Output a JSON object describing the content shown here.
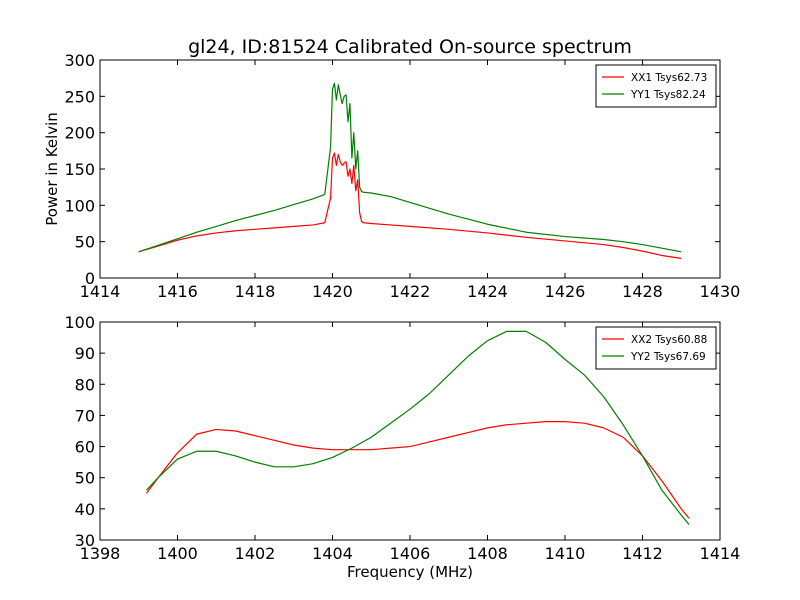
{
  "figure": {
    "title": "gl24, ID:81524 Calibrated On-source spectrum",
    "background": "#ffffff"
  },
  "chart_data": [
    {
      "type": "line",
      "title": "gl24, ID:81524 Calibrated On-source spectrum",
      "xlabel": "",
      "ylabel": "Power in Kelvin",
      "xlim": [
        1414,
        1430
      ],
      "ylim": [
        0,
        300
      ],
      "xticks": [
        1414,
        1416,
        1418,
        1420,
        1422,
        1424,
        1426,
        1428,
        1430
      ],
      "yticks": [
        0,
        50,
        100,
        150,
        200,
        250,
        300
      ],
      "grid": false,
      "legend_position": "top-right",
      "series": [
        {
          "name": "XX1 Tsys62.73",
          "color": "#ff0000",
          "x": [
            1415.0,
            1415.5,
            1416.0,
            1416.5,
            1417.0,
            1417.5,
            1418.0,
            1418.5,
            1419.0,
            1419.5,
            1419.8,
            1419.95,
            1420.0,
            1420.05,
            1420.1,
            1420.15,
            1420.2,
            1420.25,
            1420.3,
            1420.35,
            1420.4,
            1420.45,
            1420.5,
            1420.55,
            1420.6,
            1420.65,
            1420.7,
            1420.75,
            1420.8,
            1421.0,
            1421.5,
            1422.0,
            1423.0,
            1424.0,
            1425.0,
            1426.0,
            1427.0,
            1427.5,
            1428.0,
            1428.5,
            1429.0
          ],
          "y": [
            36,
            44,
            52,
            58,
            62,
            65,
            67,
            69,
            71,
            73,
            76,
            110,
            165,
            172,
            155,
            170,
            160,
            155,
            158,
            160,
            140,
            150,
            130,
            155,
            120,
            135,
            90,
            78,
            76,
            75,
            73,
            71,
            67,
            62,
            56,
            51,
            46,
            42,
            37,
            31,
            27
          ]
        },
        {
          "name": "YY1 Tsys82.24",
          "color": "#008000",
          "x": [
            1415.0,
            1415.5,
            1416.0,
            1416.5,
            1417.0,
            1417.5,
            1418.0,
            1418.5,
            1419.0,
            1419.5,
            1419.8,
            1419.95,
            1420.0,
            1420.05,
            1420.1,
            1420.15,
            1420.2,
            1420.25,
            1420.3,
            1420.35,
            1420.4,
            1420.45,
            1420.5,
            1420.55,
            1420.6,
            1420.65,
            1420.7,
            1420.75,
            1420.8,
            1421.0,
            1421.5,
            1422.0,
            1423.0,
            1424.0,
            1425.0,
            1426.0,
            1427.0,
            1427.5,
            1428.0,
            1428.5,
            1429.0
          ],
          "y": [
            36,
            45,
            54,
            63,
            71,
            79,
            86,
            93,
            101,
            109,
            115,
            180,
            260,
            268,
            245,
            266,
            252,
            240,
            250,
            252,
            215,
            240,
            165,
            200,
            150,
            175,
            125,
            119,
            118,
            117,
            112,
            104,
            88,
            74,
            63,
            57,
            53,
            50,
            46,
            41,
            36
          ]
        }
      ]
    },
    {
      "type": "line",
      "title": "",
      "xlabel": "Frequency (MHz)",
      "ylabel": "",
      "xlim": [
        1398,
        1414
      ],
      "ylim": [
        30,
        100
      ],
      "xticks": [
        1398,
        1400,
        1402,
        1404,
        1406,
        1408,
        1410,
        1412,
        1414
      ],
      "yticks": [
        30,
        40,
        50,
        60,
        70,
        80,
        90,
        100
      ],
      "grid": false,
      "legend_position": "top-right",
      "series": [
        {
          "name": "XX2 Tsys60.88",
          "color": "#ff0000",
          "x": [
            1399.2,
            1399.5,
            1400.0,
            1400.5,
            1401.0,
            1401.5,
            1402.0,
            1402.5,
            1403.0,
            1403.5,
            1404.0,
            1404.5,
            1405.0,
            1405.5,
            1406.0,
            1406.5,
            1407.0,
            1407.5,
            1408.0,
            1408.5,
            1409.0,
            1409.5,
            1410.0,
            1410.5,
            1411.0,
            1411.5,
            1412.0,
            1412.5,
            1413.0,
            1413.2
          ],
          "y": [
            45,
            50,
            58,
            64,
            65.5,
            65,
            63.5,
            62,
            60.5,
            59.5,
            59,
            59,
            59,
            59.5,
            60,
            61.5,
            63,
            64.5,
            66,
            67,
            67.5,
            68,
            68,
            67.5,
            66,
            63,
            57,
            49,
            40,
            37
          ]
        },
        {
          "name": "YY2 Tsys67.69",
          "color": "#008000",
          "x": [
            1399.2,
            1399.5,
            1400.0,
            1400.5,
            1401.0,
            1401.5,
            1402.0,
            1402.5,
            1403.0,
            1403.5,
            1404.0,
            1404.5,
            1405.0,
            1405.5,
            1406.0,
            1406.5,
            1407.0,
            1407.5,
            1408.0,
            1408.5,
            1409.0,
            1409.5,
            1410.0,
            1410.5,
            1411.0,
            1411.5,
            1412.0,
            1412.5,
            1413.0,
            1413.2
          ],
          "y": [
            46,
            50,
            56,
            58.5,
            58.5,
            57,
            55,
            53.5,
            53.5,
            54.5,
            56.5,
            59.5,
            63,
            67.5,
            72,
            77,
            83,
            89,
            94,
            97,
            97,
            93.5,
            88,
            83,
            76,
            67,
            57,
            46,
            38,
            35
          ]
        }
      ]
    }
  ]
}
